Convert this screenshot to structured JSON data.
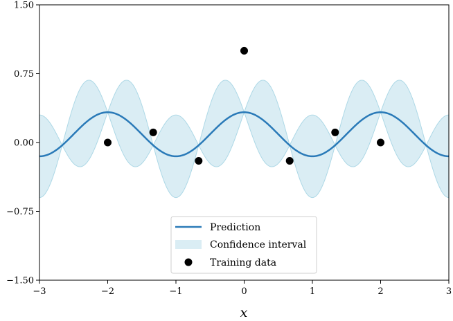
{
  "chart_data": {
    "type": "line",
    "title": "",
    "xlabel": "x",
    "ylabel": "",
    "xlim": [
      -3,
      3
    ],
    "ylim": [
      -1.5,
      1.5
    ],
    "xticks": [
      -3,
      -2,
      -1,
      0,
      1,
      2,
      3
    ],
    "xtick_labels": [
      "−3",
      "−2",
      "−1",
      "0",
      "1",
      "2",
      "3"
    ],
    "yticks": [
      -1.5,
      -0.75,
      0.0,
      0.75,
      1.5
    ],
    "ytick_labels": [
      "−1.50",
      "−0.75",
      "0.00",
      "0.75",
      "1.50"
    ],
    "grid": false,
    "legend_position": "lower-center",
    "colors": {
      "prediction": "#2a7ab8",
      "confidence": "#add8e6",
      "training": "#000000"
    },
    "prediction": {
      "name": "Prediction",
      "model": "mean = 0.09 + 0.24*cos(pi*x)",
      "offset": 0.09,
      "amplitude": 0.24
    },
    "confidence_interval": {
      "name": "Confidence interval",
      "model": "half-width = |0.45*sin(1.5*pi*x)|",
      "amplitude": 0.45
    },
    "training_data": {
      "name": "Training data",
      "x": [
        -2.0,
        -1.333,
        -0.667,
        0.0,
        0.667,
        1.333,
        2.0
      ],
      "y": [
        0.0,
        0.11,
        -0.2,
        1.0,
        -0.2,
        0.11,
        0.0
      ]
    },
    "legend": [
      "Prediction",
      "Confidence interval",
      "Training data"
    ]
  }
}
